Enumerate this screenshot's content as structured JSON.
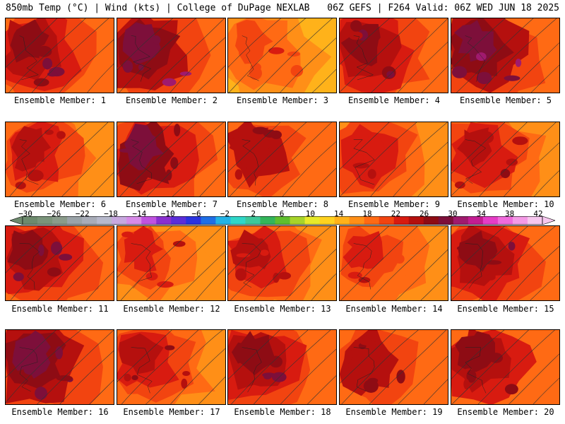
{
  "header": {
    "left": "850mb Temp (°C) | Wind (kts) | College of DuPage NEXLAB",
    "right": "06Z GEFS | F264 Valid: 06Z WED JUN 18 2025"
  },
  "colorbar": {
    "labels": [
      "-30",
      "-26",
      "-22",
      "-18",
      "-14",
      "-10",
      "-6",
      "-2",
      "2",
      "6",
      "10",
      "14",
      "18",
      "22",
      "26",
      "30",
      "34",
      "38",
      "42"
    ],
    "colors": [
      "#6d8a6d",
      "#7a947a",
      "#8a9b8a",
      "#9aa3a8",
      "#a8acb8",
      "#b7b9cc",
      "#c7a8df",
      "#d78be8",
      "#c053e0",
      "#8a2fd0",
      "#5b2ed9",
      "#2a33e0",
      "#1f6fe6",
      "#23b3e6",
      "#2fd7c8",
      "#3ec89a",
      "#33b55a",
      "#5fbf2e",
      "#a7d42a",
      "#e7ea2a",
      "#ffd21f",
      "#ffb21a",
      "#ff8f17",
      "#ff6a14",
      "#f24410",
      "#d81b10",
      "#b5100e",
      "#8e0c14",
      "#7d0f3a",
      "#a01a6e",
      "#c31d92",
      "#e63dc6",
      "#f06bdc",
      "#f49ae6",
      "#f7c7ef"
    ]
  },
  "panels": [
    {
      "label": "Ensemble Member: 1",
      "warmth": 0.72
    },
    {
      "label": "Ensemble Member: 2",
      "warmth": 0.8
    },
    {
      "label": "Ensemble Member: 3",
      "warmth": 0.35
    },
    {
      "label": "Ensemble Member: 4",
      "warmth": 0.7
    },
    {
      "label": "Ensemble Member: 5",
      "warmth": 0.82
    },
    {
      "label": "Ensemble Member: 6",
      "warmth": 0.55
    },
    {
      "label": "Ensemble Member: 7",
      "warmth": 0.75
    },
    {
      "label": "Ensemble Member: 8",
      "warmth": 0.62
    },
    {
      "label": "Ensemble Member: 9",
      "warmth": 0.5
    },
    {
      "label": "Ensemble Member: 10",
      "warmth": 0.58
    },
    {
      "label": "Ensemble Member: 11",
      "warmth": 0.7
    },
    {
      "label": "Ensemble Member: 12",
      "warmth": 0.45
    },
    {
      "label": "Ensemble Member: 13",
      "warmth": 0.55
    },
    {
      "label": "Ensemble Member: 14",
      "warmth": 0.48
    },
    {
      "label": "Ensemble Member: 15",
      "warmth": 0.66
    },
    {
      "label": "Ensemble Member: 16",
      "warmth": 0.78
    },
    {
      "label": "Ensemble Member: 17",
      "warmth": 0.6
    },
    {
      "label": "Ensemble Member: 18",
      "warmth": 0.72
    },
    {
      "label": "Ensemble Member: 19",
      "warmth": 0.62
    },
    {
      "label": "Ensemble Member: 20",
      "warmth": 0.64
    }
  ]
}
